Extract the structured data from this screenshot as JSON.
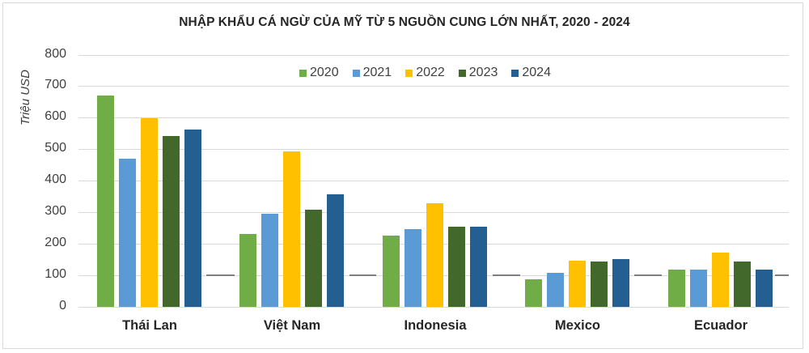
{
  "title": "NHẬP KHẨU CÁ NGỪ CỦA MỸ TỪ 5 NGUỒN CUNG LỚN NHẤT, 2020 - 2024",
  "y_axis": {
    "label": "Triệu USD",
    "ticks": [
      "0",
      "100",
      "200",
      "300",
      "400",
      "500",
      "600",
      "700",
      "800"
    ]
  },
  "legend": [
    {
      "label": "2020",
      "color": "#70ad47"
    },
    {
      "label": "2021",
      "color": "#5b9bd5"
    },
    {
      "label": "2022",
      "color": "#ffc000"
    },
    {
      "label": "2023",
      "color": "#43682b"
    },
    {
      "label": "2024",
      "color": "#255e91"
    }
  ],
  "categories": [
    "Thái Lan",
    "Việt Nam",
    "Indonesia",
    "Mexico",
    "Ecuador"
  ],
  "chart_data": {
    "type": "bar",
    "title": "NHẬP KHẨU CÁ NGỪ CỦA MỸ TỪ 5 NGUỒN CUNG LỚN NHẤT, 2020 - 2024",
    "xlabel": "",
    "ylabel": "Triệu USD",
    "ylim": [
      0,
      800
    ],
    "yticks": [
      0,
      100,
      200,
      300,
      400,
      500,
      600,
      700,
      800
    ],
    "grid": true,
    "legend_position": "top-inside",
    "categories": [
      "Thái Lan",
      "Việt Nam",
      "Indonesia",
      "Mexico",
      "Ecuador"
    ],
    "series": [
      {
        "name": "2020",
        "color": "#70ad47",
        "values": [
          670,
          231,
          227,
          87,
          117
        ]
      },
      {
        "name": "2021",
        "color": "#5b9bd5",
        "values": [
          469,
          296,
          246,
          108,
          118
        ]
      },
      {
        "name": "2022",
        "color": "#ffc000",
        "values": [
          599,
          492,
          328,
          147,
          171
        ]
      },
      {
        "name": "2023",
        "color": "#43682b",
        "values": [
          543,
          309,
          253,
          145,
          145
        ]
      },
      {
        "name": "2024",
        "color": "#255e91",
        "values": [
          562,
          357,
          255,
          151,
          117
        ]
      }
    ],
    "annotations": [
      "Reference dash segments at 100 between category groups"
    ]
  }
}
